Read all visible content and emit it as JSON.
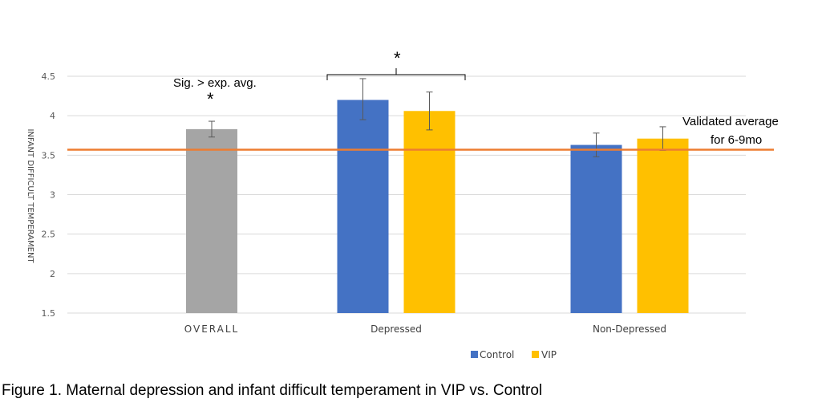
{
  "chart_data": {
    "type": "bar",
    "ylabel": "INFANT DIFFICULT TEMPERAMENT",
    "ylim": [
      1.5,
      4.5
    ],
    "yticks": [
      "1.5",
      "2",
      "2.5",
      "3",
      "3.5",
      "4",
      "4.5"
    ],
    "grid": true,
    "legend_placement": "bottom",
    "groups": [
      {
        "label": "OVERALL",
        "bars": [
          {
            "series": "Overall",
            "value": 3.83,
            "err_low": 3.73,
            "err_high": 3.93,
            "color": "#A5A5A5"
          }
        ]
      },
      {
        "label": "Depressed",
        "bars": [
          {
            "series": "Control",
            "value": 4.2,
            "err_low": 3.95,
            "err_high": 4.47,
            "color": "#4472C4"
          },
          {
            "series": "VIP",
            "value": 4.06,
            "err_low": 3.82,
            "err_high": 4.3,
            "color": "#FFC000"
          }
        ]
      },
      {
        "label": "Non-Depressed",
        "bars": [
          {
            "series": "Control",
            "value": 3.63,
            "err_low": 3.48,
            "err_high": 3.78,
            "color": "#4472C4"
          },
          {
            "series": "VIP",
            "value": 3.71,
            "err_low": 3.56,
            "err_high": 3.86,
            "color": "#FFC000"
          }
        ]
      }
    ],
    "legend": [
      {
        "name": "Control",
        "color": "#4472C4"
      },
      {
        "name": "VIP",
        "color": "#FFC000"
      }
    ],
    "reference_line": {
      "value": 3.57,
      "color": "#ED7D31",
      "label_line1": "Validated average",
      "label_line2": "for 6-9mo"
    },
    "annotations": {
      "overall_text": "Sig. > exp. avg.",
      "overall_star": "*",
      "bracket_star": "*"
    }
  },
  "caption": "Figure 1. Maternal depression and infant difficult temperament in VIP vs. Control"
}
